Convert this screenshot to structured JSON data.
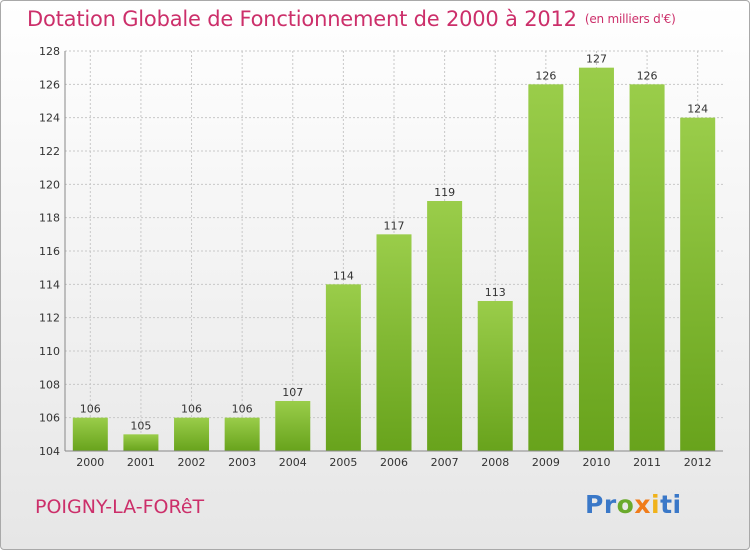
{
  "header": {
    "title": "Dotation Globale de Fonctionnement de 2000 à 2012",
    "unit": "(en milliers d'€)"
  },
  "footer": {
    "town": "POIGNY-LA-FORêT",
    "brand_letters": [
      {
        "ch": "P",
        "color": "#3a78c8"
      },
      {
        "ch": "r",
        "color": "#3a78c8"
      },
      {
        "ch": "o",
        "color": "#6aaa2c"
      },
      {
        "ch": "x",
        "color": "#f07c1a"
      },
      {
        "ch": "i",
        "color": "#f0b21a"
      },
      {
        "ch": "t",
        "color": "#3a78c8"
      },
      {
        "ch": "i",
        "color": "#3a78c8"
      }
    ]
  },
  "colors": {
    "title": "#cc2f6a",
    "bar_light": "#9acd4a",
    "bar_dark": "#68a31c",
    "grid": "#c8c8c8",
    "axis": "#888888",
    "text": "#333333"
  },
  "chart_data": {
    "type": "bar",
    "categories": [
      "2000",
      "2001",
      "2002",
      "2003",
      "2004",
      "2005",
      "2006",
      "2007",
      "2008",
      "2009",
      "2010",
      "2011",
      "2012"
    ],
    "values": [
      106,
      105,
      106,
      106,
      107,
      114,
      117,
      119,
      113,
      126,
      127,
      126,
      124
    ],
    "ylim": [
      104,
      128
    ],
    "yticks": [
      104,
      106,
      108,
      110,
      112,
      114,
      116,
      118,
      120,
      122,
      124,
      126,
      128
    ],
    "grid": true,
    "data_labels": true
  }
}
